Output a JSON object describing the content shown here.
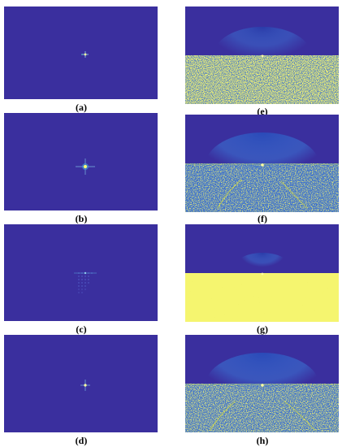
{
  "figure": {
    "panels": [
      {
        "id": "a",
        "label": "(a)",
        "kind": "spectrum",
        "pattern": "single-star"
      },
      {
        "id": "b",
        "label": "(b)",
        "kind": "spectrum",
        "pattern": "bright-star"
      },
      {
        "id": "c",
        "label": "(c)",
        "kind": "spectrum",
        "pattern": "dotted-grid"
      },
      {
        "id": "d",
        "label": "(d)",
        "kind": "spectrum",
        "pattern": "single-star"
      },
      {
        "id": "e",
        "label": "(e)",
        "kind": "split",
        "pattern": "dense-noise"
      },
      {
        "id": "f",
        "label": "(f)",
        "kind": "split",
        "pattern": "road-noise"
      },
      {
        "id": "g",
        "label": "(g)",
        "kind": "split",
        "pattern": "saturated"
      },
      {
        "id": "h",
        "label": "(h)",
        "kind": "split",
        "pattern": "road-noise"
      }
    ],
    "colors": {
      "background": "#3a2f9e",
      "noise_yellow": "#e8e82a",
      "noise_blue": "#3b6fd0",
      "highlight": "#ffffa0"
    }
  }
}
